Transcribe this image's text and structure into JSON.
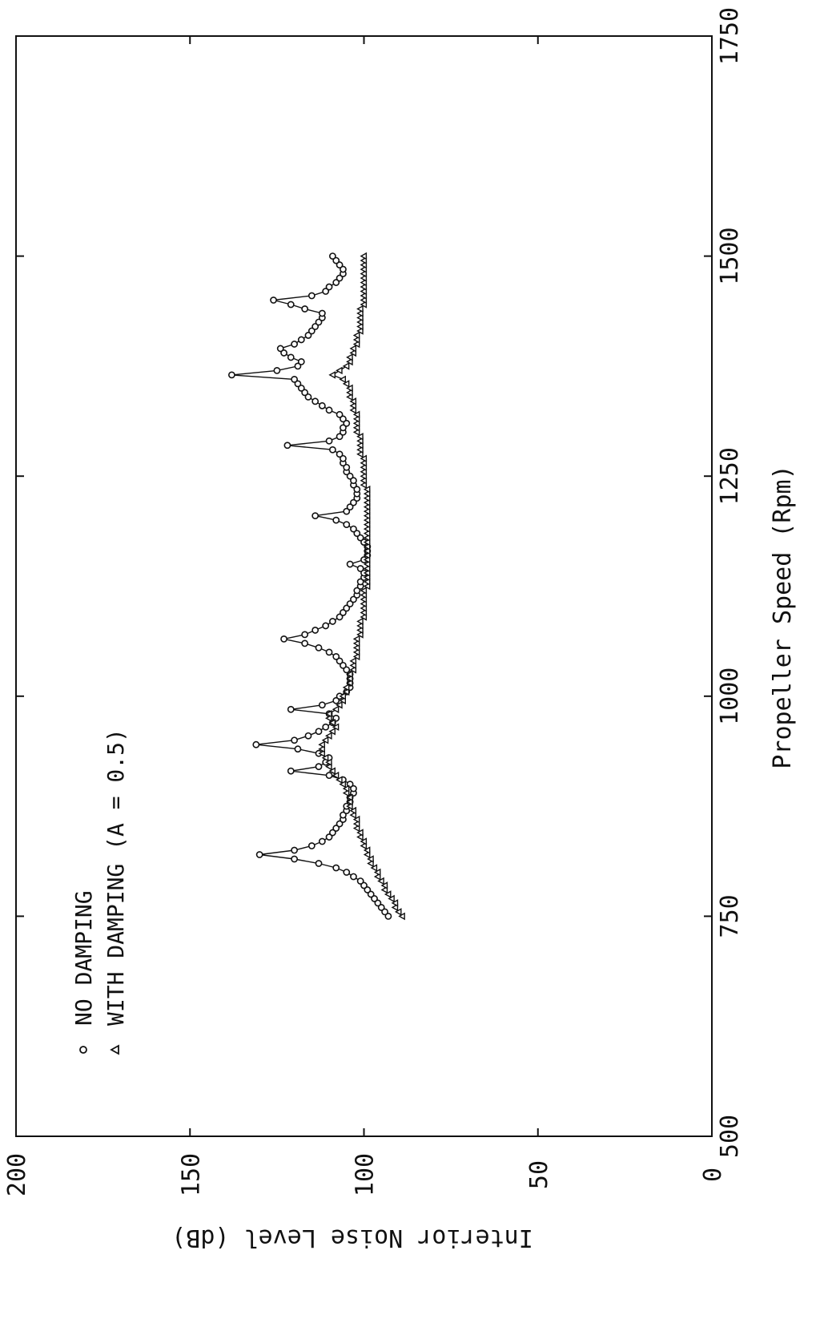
{
  "chart_data": {
    "type": "line",
    "orientation": "rotated-90",
    "xlabel": "Propeller Speed (Rpm)",
    "ylabel": "Interior Noise Level (dB)",
    "xlim": [
      500,
      1750
    ],
    "ylim": [
      0,
      200
    ],
    "x_ticks": [
      "500",
      "750",
      "1000",
      "1250",
      "1500",
      "1750"
    ],
    "y_ticks": [
      "0",
      "50",
      "100",
      "150",
      "200"
    ],
    "grid": false,
    "legend_position": "top-left",
    "series": [
      {
        "name": "NO DAMPING",
        "marker": "circle",
        "color": "#111111",
        "points": [
          [
            750,
            93
          ],
          [
            755,
            94
          ],
          [
            760,
            95
          ],
          [
            765,
            96
          ],
          [
            770,
            97
          ],
          [
            775,
            98
          ],
          [
            780,
            99
          ],
          [
            785,
            100
          ],
          [
            790,
            101
          ],
          [
            795,
            103
          ],
          [
            800,
            105
          ],
          [
            805,
            108
          ],
          [
            810,
            113
          ],
          [
            815,
            120
          ],
          [
            820,
            130
          ],
          [
            825,
            120
          ],
          [
            830,
            115
          ],
          [
            835,
            112
          ],
          [
            840,
            110
          ],
          [
            845,
            109
          ],
          [
            850,
            108
          ],
          [
            855,
            107
          ],
          [
            860,
            106
          ],
          [
            865,
            106
          ],
          [
            870,
            105
          ],
          [
            875,
            105
          ],
          [
            880,
            104
          ],
          [
            885,
            104
          ],
          [
            890,
            103
          ],
          [
            895,
            103
          ],
          [
            900,
            104
          ],
          [
            905,
            106
          ],
          [
            910,
            110
          ],
          [
            915,
            121
          ],
          [
            920,
            113
          ],
          [
            925,
            111
          ],
          [
            930,
            110
          ],
          [
            935,
            113
          ],
          [
            940,
            119
          ],
          [
            945,
            131
          ],
          [
            950,
            120
          ],
          [
            955,
            116
          ],
          [
            960,
            113
          ],
          [
            965,
            111
          ],
          [
            970,
            109
          ],
          [
            975,
            108
          ],
          [
            980,
            110
          ],
          [
            985,
            121
          ],
          [
            990,
            112
          ],
          [
            995,
            108
          ],
          [
            1000,
            107
          ],
          [
            1005,
            105
          ],
          [
            1010,
            104
          ],
          [
            1015,
            104
          ],
          [
            1020,
            104
          ],
          [
            1025,
            104
          ],
          [
            1030,
            105
          ],
          [
            1035,
            106
          ],
          [
            1040,
            107
          ],
          [
            1045,
            108
          ],
          [
            1050,
            110
          ],
          [
            1055,
            113
          ],
          [
            1060,
            117
          ],
          [
            1065,
            123
          ],
          [
            1070,
            117
          ],
          [
            1075,
            114
          ],
          [
            1080,
            111
          ],
          [
            1085,
            109
          ],
          [
            1090,
            107
          ],
          [
            1095,
            106
          ],
          [
            1100,
            105
          ],
          [
            1105,
            104
          ],
          [
            1110,
            103
          ],
          [
            1115,
            102
          ],
          [
            1120,
            102
          ],
          [
            1125,
            101
          ],
          [
            1130,
            101
          ],
          [
            1135,
            100
          ],
          [
            1140,
            100
          ],
          [
            1145,
            101
          ],
          [
            1150,
            104
          ],
          [
            1155,
            100
          ],
          [
            1160,
            99
          ],
          [
            1165,
            99
          ],
          [
            1170,
            99
          ],
          [
            1175,
            100
          ],
          [
            1180,
            101
          ],
          [
            1185,
            102
          ],
          [
            1190,
            103
          ],
          [
            1195,
            105
          ],
          [
            1200,
            108
          ],
          [
            1205,
            114
          ],
          [
            1210,
            105
          ],
          [
            1215,
            104
          ],
          [
            1220,
            103
          ],
          [
            1225,
            102
          ],
          [
            1230,
            102
          ],
          [
            1235,
            102
          ],
          [
            1240,
            103
          ],
          [
            1245,
            103
          ],
          [
            1250,
            104
          ],
          [
            1255,
            105
          ],
          [
            1260,
            105
          ],
          [
            1265,
            106
          ],
          [
            1270,
            106
          ],
          [
            1275,
            107
          ],
          [
            1280,
            109
          ],
          [
            1285,
            122
          ],
          [
            1290,
            110
          ],
          [
            1295,
            107
          ],
          [
            1300,
            106
          ],
          [
            1305,
            106
          ],
          [
            1310,
            105
          ],
          [
            1315,
            106
          ],
          [
            1320,
            107
          ],
          [
            1325,
            110
          ],
          [
            1330,
            112
          ],
          [
            1335,
            114
          ],
          [
            1340,
            116
          ],
          [
            1345,
            117
          ],
          [
            1350,
            118
          ],
          [
            1355,
            119
          ],
          [
            1360,
            120
          ],
          [
            1365,
            138
          ],
          [
            1370,
            125
          ],
          [
            1375,
            119
          ],
          [
            1380,
            118
          ],
          [
            1385,
            121
          ],
          [
            1390,
            123
          ],
          [
            1395,
            124
          ],
          [
            1400,
            120
          ],
          [
            1405,
            118
          ],
          [
            1410,
            116
          ],
          [
            1415,
            115
          ],
          [
            1420,
            114
          ],
          [
            1425,
            113
          ],
          [
            1430,
            112
          ],
          [
            1435,
            112
          ],
          [
            1440,
            117
          ],
          [
            1445,
            121
          ],
          [
            1450,
            126
          ],
          [
            1455,
            115
          ],
          [
            1460,
            111
          ],
          [
            1465,
            110
          ],
          [
            1470,
            108
          ],
          [
            1475,
            107
          ],
          [
            1480,
            106
          ],
          [
            1485,
            106
          ],
          [
            1490,
            107
          ],
          [
            1495,
            108
          ],
          [
            1500,
            109
          ]
        ]
      },
      {
        "name": "WITH DAMPING (A = 0.5)",
        "marker": "triangle",
        "color": "#111111",
        "points": [
          [
            750,
            89
          ],
          [
            755,
            90
          ],
          [
            760,
            91
          ],
          [
            765,
            91
          ],
          [
            770,
            92
          ],
          [
            775,
            93
          ],
          [
            780,
            94
          ],
          [
            785,
            94
          ],
          [
            790,
            95
          ],
          [
            795,
            96
          ],
          [
            800,
            96
          ],
          [
            805,
            97
          ],
          [
            810,
            98
          ],
          [
            815,
            98
          ],
          [
            820,
            99
          ],
          [
            825,
            99
          ],
          [
            830,
            100
          ],
          [
            835,
            100
          ],
          [
            840,
            101
          ],
          [
            845,
            101
          ],
          [
            850,
            102
          ],
          [
            855,
            102
          ],
          [
            860,
            102
          ],
          [
            865,
            103
          ],
          [
            870,
            103
          ],
          [
            875,
            104
          ],
          [
            880,
            104
          ],
          [
            885,
            104
          ],
          [
            890,
            105
          ],
          [
            895,
            105
          ],
          [
            900,
            106
          ],
          [
            905,
            107
          ],
          [
            910,
            108
          ],
          [
            915,
            109
          ],
          [
            920,
            110
          ],
          [
            925,
            110
          ],
          [
            930,
            111
          ],
          [
            935,
            112
          ],
          [
            940,
            112
          ],
          [
            945,
            112
          ],
          [
            950,
            111
          ],
          [
            955,
            110
          ],
          [
            960,
            109
          ],
          [
            965,
            108
          ],
          [
            970,
            109
          ],
          [
            975,
            110
          ],
          [
            980,
            110
          ],
          [
            985,
            108
          ],
          [
            990,
            107
          ],
          [
            995,
            106
          ],
          [
            1000,
            106
          ],
          [
            1005,
            105
          ],
          [
            1010,
            105
          ],
          [
            1015,
            104
          ],
          [
            1020,
            104
          ],
          [
            1025,
            104
          ],
          [
            1030,
            103
          ],
          [
            1035,
            103
          ],
          [
            1040,
            103
          ],
          [
            1045,
            102
          ],
          [
            1050,
            102
          ],
          [
            1055,
            102
          ],
          [
            1060,
            102
          ],
          [
            1065,
            102
          ],
          [
            1070,
            101
          ],
          [
            1075,
            101
          ],
          [
            1080,
            101
          ],
          [
            1085,
            101
          ],
          [
            1090,
            100
          ],
          [
            1095,
            100
          ],
          [
            1100,
            100
          ],
          [
            1105,
            100
          ],
          [
            1110,
            100
          ],
          [
            1115,
            100
          ],
          [
            1120,
            100
          ],
          [
            1125,
            99
          ],
          [
            1130,
            99
          ],
          [
            1135,
            99
          ],
          [
            1140,
            99
          ],
          [
            1145,
            99
          ],
          [
            1150,
            99
          ],
          [
            1155,
            99
          ],
          [
            1160,
            99
          ],
          [
            1165,
            99
          ],
          [
            1170,
            99
          ],
          [
            1175,
            99
          ],
          [
            1180,
            99
          ],
          [
            1185,
            99
          ],
          [
            1190,
            99
          ],
          [
            1195,
            99
          ],
          [
            1200,
            99
          ],
          [
            1205,
            99
          ],
          [
            1210,
            99
          ],
          [
            1215,
            99
          ],
          [
            1220,
            99
          ],
          [
            1225,
            99
          ],
          [
            1230,
            99
          ],
          [
            1235,
            99
          ],
          [
            1240,
            100
          ],
          [
            1245,
            100
          ],
          [
            1250,
            100
          ],
          [
            1255,
            100
          ],
          [
            1260,
            100
          ],
          [
            1265,
            100
          ],
          [
            1270,
            100
          ],
          [
            1275,
            101
          ],
          [
            1280,
            101
          ],
          [
            1285,
            101
          ],
          [
            1290,
            101
          ],
          [
            1295,
            101
          ],
          [
            1300,
            102
          ],
          [
            1305,
            102
          ],
          [
            1310,
            102
          ],
          [
            1315,
            102
          ],
          [
            1320,
            102
          ],
          [
            1325,
            103
          ],
          [
            1330,
            103
          ],
          [
            1335,
            103
          ],
          [
            1340,
            104
          ],
          [
            1345,
            104
          ],
          [
            1350,
            104
          ],
          [
            1355,
            105
          ],
          [
            1360,
            106
          ],
          [
            1365,
            109
          ],
          [
            1370,
            107
          ],
          [
            1375,
            105
          ],
          [
            1380,
            104
          ],
          [
            1385,
            104
          ],
          [
            1390,
            103
          ],
          [
            1395,
            103
          ],
          [
            1400,
            102
          ],
          [
            1405,
            102
          ],
          [
            1410,
            102
          ],
          [
            1415,
            101
          ],
          [
            1420,
            101
          ],
          [
            1425,
            101
          ],
          [
            1430,
            101
          ],
          [
            1435,
            101
          ],
          [
            1440,
            101
          ],
          [
            1445,
            100
          ],
          [
            1450,
            100
          ],
          [
            1455,
            100
          ],
          [
            1460,
            100
          ],
          [
            1465,
            100
          ],
          [
            1470,
            100
          ],
          [
            1475,
            100
          ],
          [
            1480,
            100
          ],
          [
            1485,
            100
          ],
          [
            1490,
            100
          ],
          [
            1495,
            100
          ],
          [
            1500,
            100
          ]
        ]
      }
    ]
  }
}
